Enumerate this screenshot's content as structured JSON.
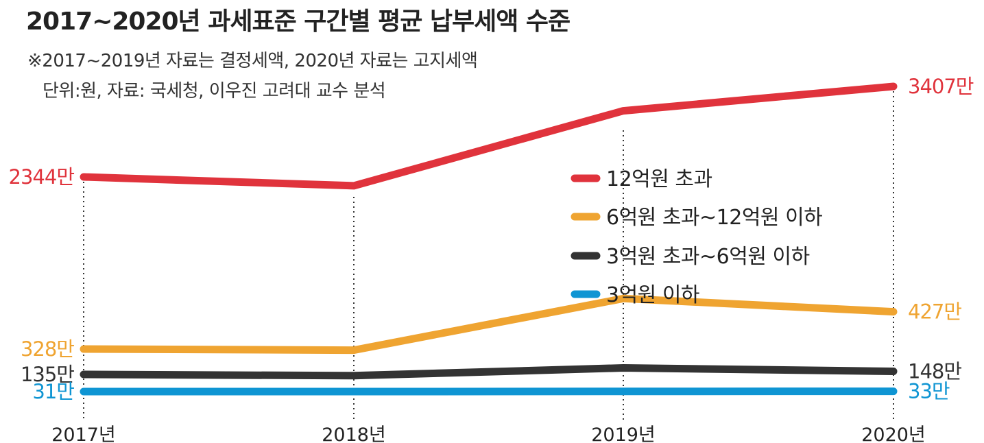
{
  "title": "2017~2020년 과세표준 구간별 평균 납부세액 수준",
  "notes": {
    "line1": "※2017~2019년 자료는 결정세액, 2020년 자료는 고지세액",
    "line2": "단위:원, 자료: 국세청, 이우진 고려대 교수 분석"
  },
  "chart_data": {
    "type": "line",
    "title": "2017~2020년 과세표준 구간별 평균 납부세액 수준",
    "unit": "원",
    "categories": [
      "2017년",
      "2018년",
      "2019년",
      "2020년"
    ],
    "series": [
      {
        "name": "12억원 초과",
        "color": "#e0333c",
        "values": [
          23440000,
          22400000,
          31200000,
          34070000
        ],
        "label_start": "2344만",
        "label_end": "3407만"
      },
      {
        "name": "6억원 초과~12억원 이하",
        "color": "#efa431",
        "values": [
          3280000,
          3250000,
          4620000,
          4270000
        ],
        "label_start": "328만",
        "label_end": "427만"
      },
      {
        "name": "3억원 초과~6억원 이하",
        "color": "#333333",
        "values": [
          1350000,
          1300000,
          1620000,
          1480000
        ],
        "label_start": "135만",
        "label_end": "148만"
      },
      {
        "name": "3억원 이하",
        "color": "#0f95d3",
        "values": [
          310000,
          310000,
          320000,
          330000
        ],
        "label_start": "31만",
        "label_end": "33만"
      }
    ],
    "legend_position": "right-center"
  }
}
